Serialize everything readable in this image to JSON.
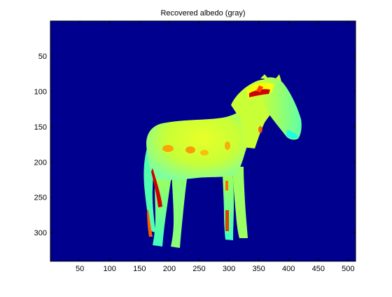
{
  "chart_data": {
    "type": "heatmap",
    "title": "Recovered albedo (gray)",
    "xlabel": "",
    "ylabel": "",
    "colormap": "jet",
    "xlim": [
      0.5,
      512.5
    ],
    "ylim": [
      0.5,
      340.5
    ],
    "y_direction": "reverse",
    "x_ticks": [
      50,
      100,
      150,
      200,
      250,
      300,
      350,
      400,
      450,
      500
    ],
    "y_ticks": [
      50,
      100,
      150,
      200,
      250,
      300
    ],
    "x_tick_labels": [
      "50",
      "100",
      "150",
      "200",
      "250",
      "300",
      "350",
      "400",
      "450",
      "500"
    ],
    "y_tick_labels": [
      "50",
      "100",
      "150",
      "200",
      "250",
      "300"
    ],
    "image_content": "horse silhouette (albedo map) on uniform low-value background",
    "colors": {
      "background_value": "#00008f",
      "low_cyan": "#20ffdf",
      "mid_yellowgreen": "#c8ff36",
      "high_yellow": "#ffff00",
      "orange": "#ff8a00",
      "red": "#d00000",
      "dark_red": "#800000"
    }
  }
}
